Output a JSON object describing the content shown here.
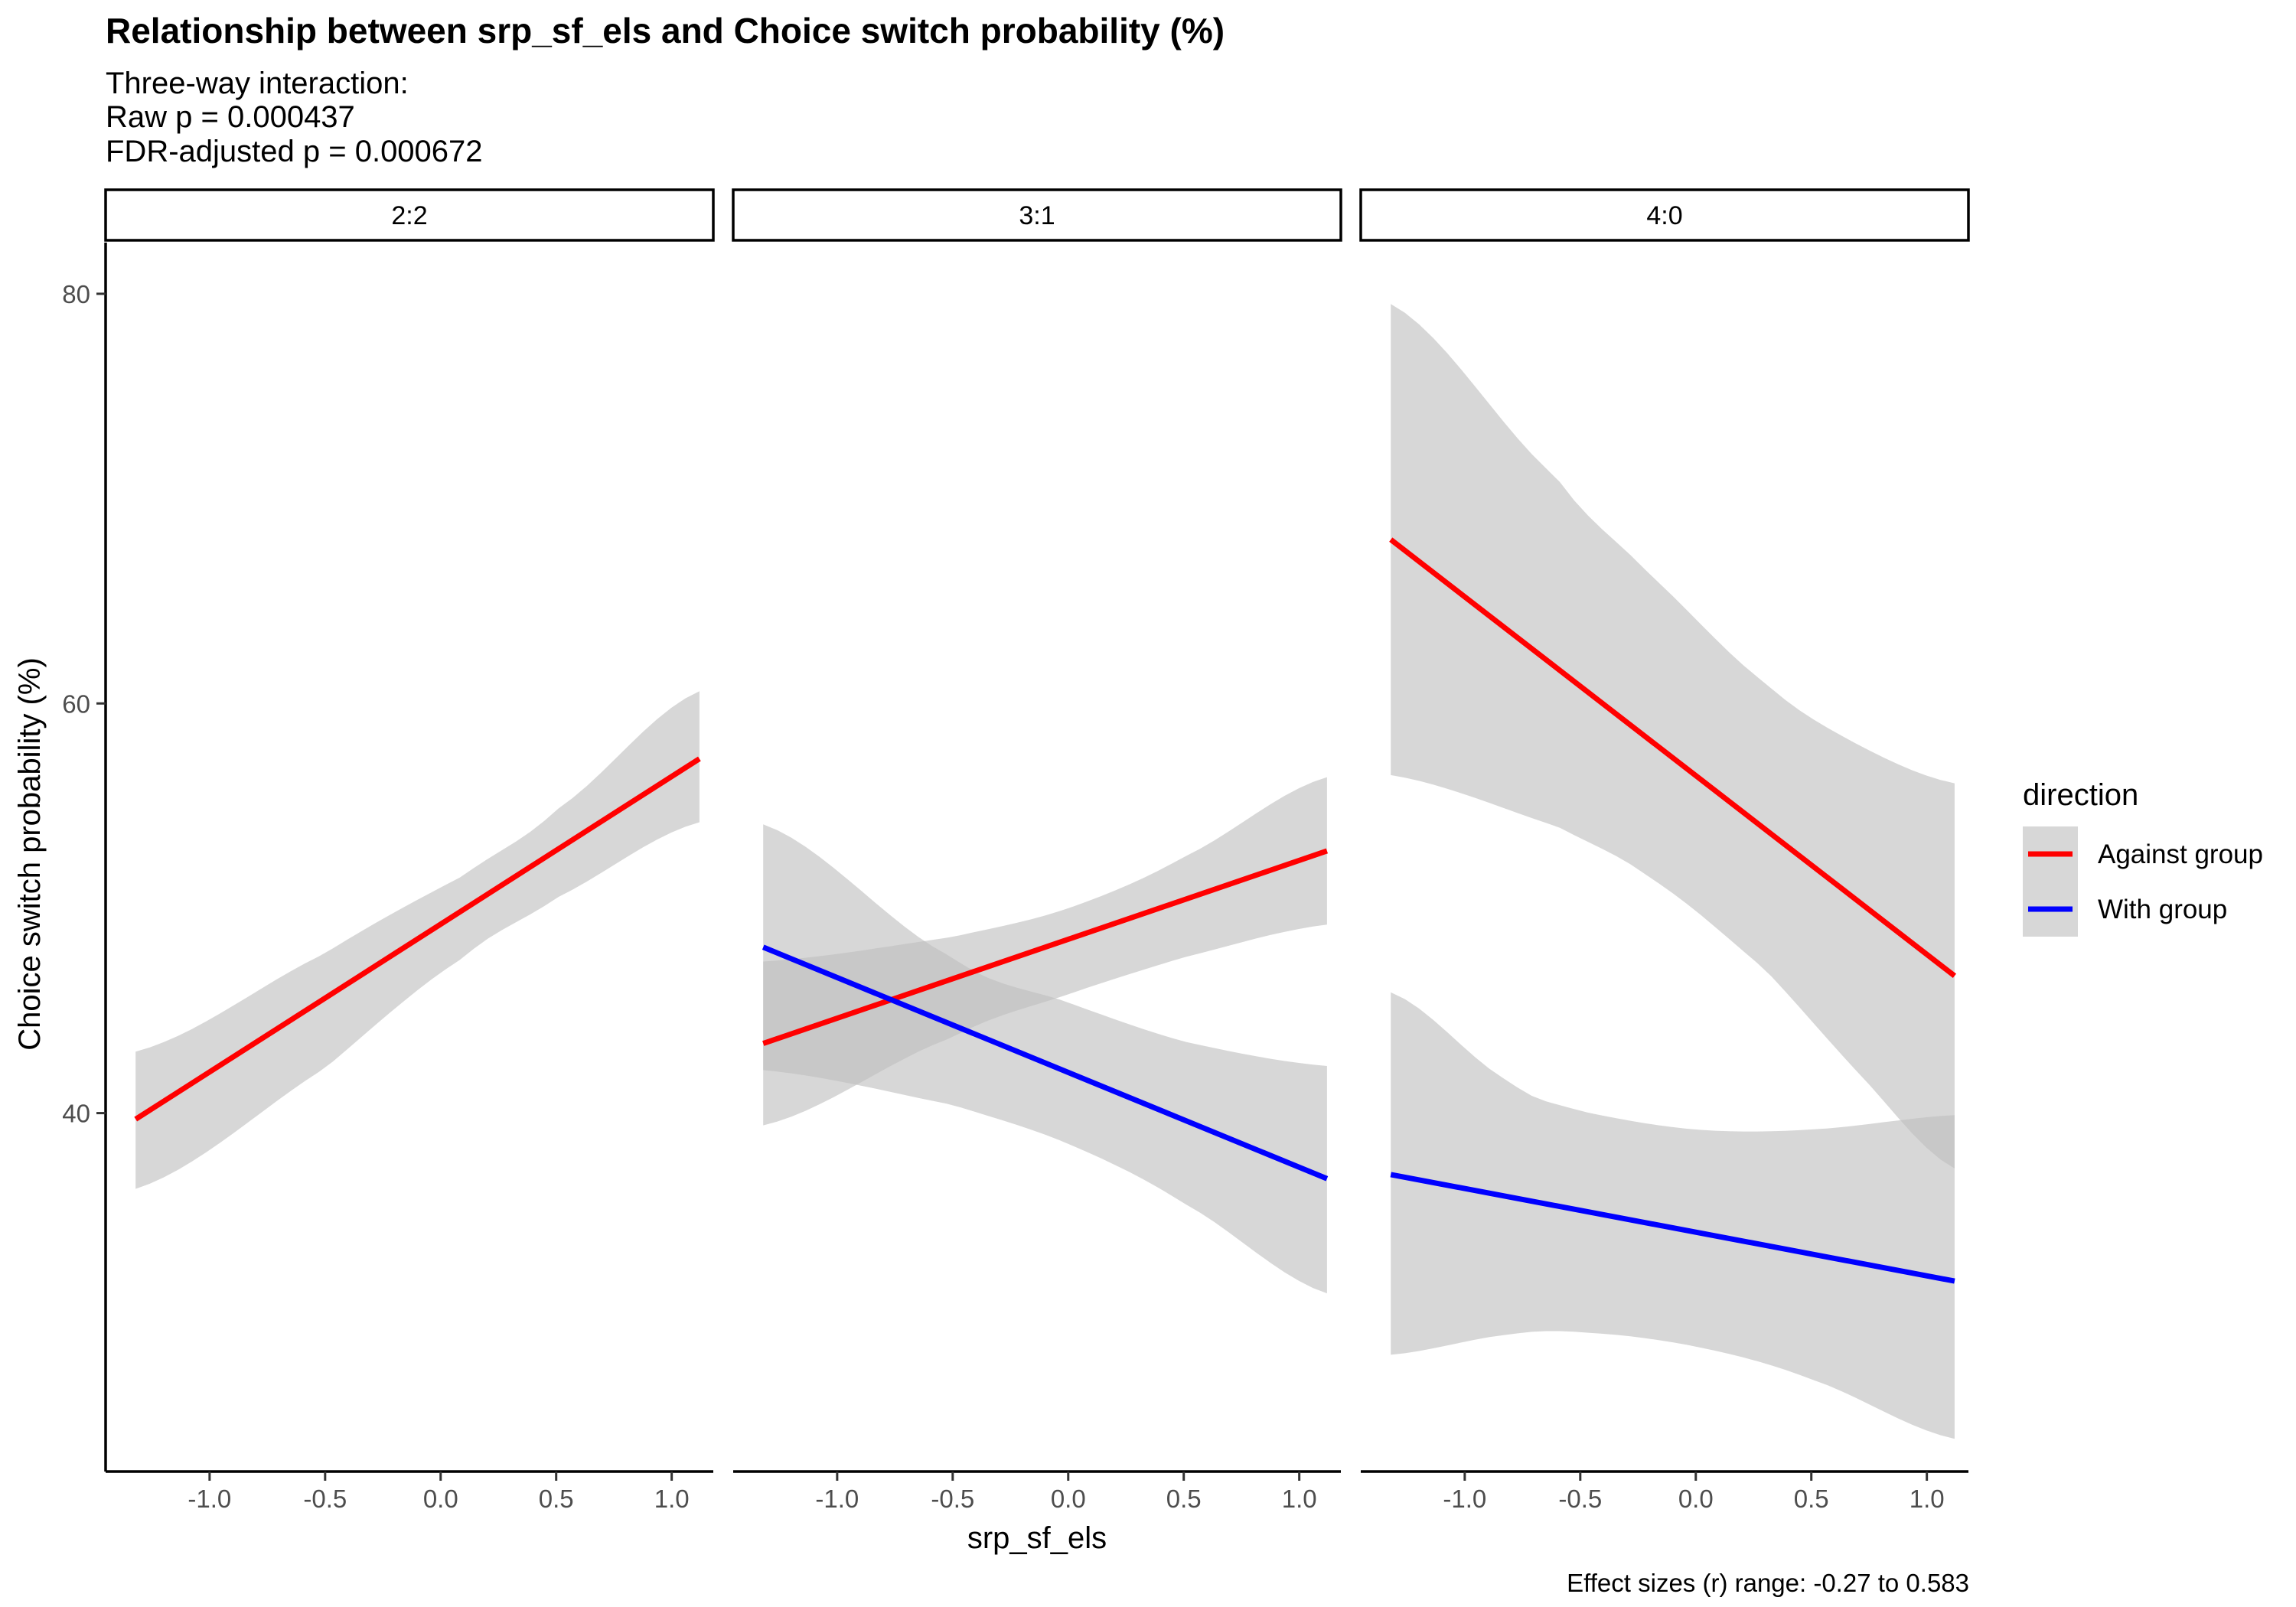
{
  "title": "Relationship between srp_sf_els and Choice switch probability (%)",
  "subtitle_lines": [
    "Three-way interaction:",
    "Raw p = 0.000437",
    "FDR-adjusted p = 0.000672"
  ],
  "caption": "Effect sizes (r) range: -0.27 to 0.583",
  "colors": {
    "Against group": "#ff0000",
    "With group": "#0000ff",
    "ribbon": "#bfbfbf"
  },
  "chart_data": {
    "type": "line",
    "xlabel": "srp_sf_els",
    "ylabel": "Choice switch probability (%)",
    "xlim": [
      -1.45,
      1.18
    ],
    "ylim": [
      22.5,
      82.5
    ],
    "x_ticks": [
      -1.0,
      -0.5,
      0.0,
      0.5,
      1.0
    ],
    "x_tick_labels": [
      "-1.0",
      "-0.5",
      "0.0",
      "0.5",
      "1.0"
    ],
    "y_ticks": [
      40,
      60,
      80
    ],
    "y_tick_labels": [
      "40",
      "60",
      "80"
    ],
    "legend": {
      "title": "direction",
      "entries": [
        "Against group",
        "With group"
      ],
      "position": "right"
    },
    "facets": [
      {
        "label": "2:2",
        "series": [
          {
            "name": "Against group",
            "x": [
              -1.32,
              1.12
            ],
            "y": [
              39.7,
              57.3
            ],
            "ribbon": {
              "x": [
                -1.32,
                -0.5,
                0.1,
                0.5,
                1.12
              ],
              "lower": [
                36.3,
                42.2,
                47.6,
                50.5,
                54.2
              ],
              "upper": [
                43.0,
                47.8,
                51.6,
                54.8,
                60.6
              ]
            }
          }
        ]
      },
      {
        "label": "3:1",
        "series": [
          {
            "name": "Against group",
            "x": [
              -1.32,
              1.12
            ],
            "y": [
              43.4,
              52.8
            ],
            "ribbon": {
              "x": [
                -1.32,
                -0.5,
                0.0,
                0.5,
                1.12
              ],
              "lower": [
                39.4,
                43.7,
                45.8,
                47.6,
                49.2
              ],
              "upper": [
                47.4,
                48.6,
                50.0,
                52.5,
                56.4
              ]
            }
          },
          {
            "name": "With group",
            "x": [
              -1.32,
              1.12
            ],
            "y": [
              48.1,
              36.8
            ],
            "ribbon": {
              "x": [
                -1.32,
                -0.5,
                0.0,
                0.5,
                1.12
              ],
              "lower": [
                42.1,
                40.4,
                38.5,
                35.6,
                31.2
              ],
              "upper": [
                54.1,
                47.6,
                45.4,
                43.5,
                42.3
              ]
            }
          }
        ]
      },
      {
        "label": "4:0",
        "series": [
          {
            "name": "Against group",
            "x": [
              -1.32,
              1.12
            ],
            "y": [
              68.0,
              46.7
            ],
            "ribbon": {
              "x": [
                -1.32,
                -0.6,
                -0.2,
                0.3,
                0.7,
                1.12
              ],
              "lower": [
                56.5,
                54.0,
                51.5,
                47.0,
                42.0,
                37.3
              ],
              "upper": [
                79.5,
                71.0,
                66.3,
                61.0,
                58.0,
                56.1
              ]
            }
          },
          {
            "name": "With group",
            "x": [
              -1.32,
              1.12
            ],
            "y": [
              37.0,
              31.8
            ],
            "ribbon": {
              "x": [
                -1.32,
                -0.8,
                -0.5,
                0.0,
                0.5,
                1.12
              ],
              "lower": [
                28.2,
                29.2,
                29.3,
                28.6,
                27.0,
                24.1
              ],
              "upper": [
                45.9,
                41.5,
                40.1,
                39.2,
                39.2,
                39.9
              ]
            }
          }
        ]
      }
    ]
  }
}
